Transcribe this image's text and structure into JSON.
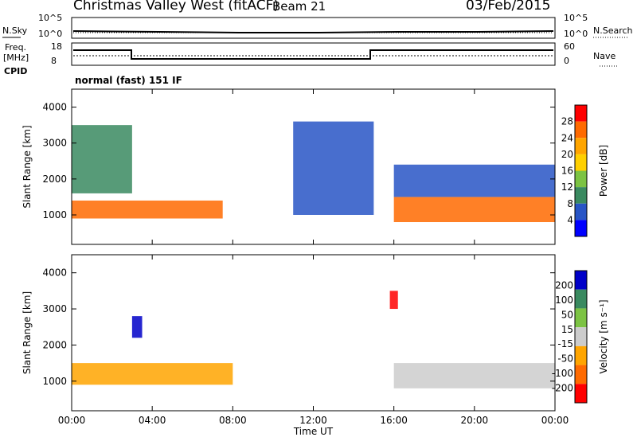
{
  "header": {
    "title": "Christmas Valley West (fitACF)",
    "beam": "Beam 21",
    "date": "03/Feb/2015"
  },
  "top_panels": {
    "nsky_label": "N.Sky",
    "nsearch_label": "N.Search",
    "nsky_ticks": [
      "10^5",
      "10^0"
    ],
    "freq_label_1": "Freq.",
    "freq_label_2": "[MHz]",
    "freq_ticks": [
      "18",
      "8"
    ],
    "nave_label": "Nave",
    "nave_ticks": [
      "60",
      "0"
    ],
    "cpid_label": "CPID",
    "mode_text": "normal (fast) 151 IF"
  },
  "chart_data": [
    {
      "type": "heatmap",
      "title": "",
      "xlabel": "",
      "ylabel": "Slant Range [km]",
      "x_ticks": [
        "00:00",
        "04:00",
        "08:00",
        "12:00",
        "16:00",
        "20:00",
        "00:00"
      ],
      "y_ticks": [
        "1000",
        "2000",
        "3000",
        "4000"
      ],
      "xlim": [
        0,
        24
      ],
      "ylim": [
        180,
        4500
      ],
      "colorbar": {
        "label": "Power [dB]",
        "ticks": [
          "28",
          "24",
          "20",
          "16",
          "12",
          "8",
          "4"
        ],
        "colors": [
          "#ff0000",
          "#ff6a00",
          "#ffa500",
          "#ffd000",
          "#7cc343",
          "#3a8a60",
          "#2855c6",
          "#0000ff"
        ]
      },
      "features": [
        {
          "t_start": 0,
          "t_end": 7.5,
          "range_start": 900,
          "range_end": 1400,
          "value": 26
        },
        {
          "t_start": 0,
          "t_end": 3,
          "range_start": 1600,
          "range_end": 3500,
          "value": 12
        },
        {
          "t_start": 16,
          "t_end": 24,
          "range_start": 800,
          "range_end": 1500,
          "value": 28
        },
        {
          "t_start": 16,
          "t_end": 24,
          "range_start": 1500,
          "range_end": 2400,
          "value": 8
        },
        {
          "t_start": 11,
          "t_end": 15,
          "range_start": 1000,
          "range_end": 3600,
          "value": 6
        }
      ]
    },
    {
      "type": "heatmap",
      "title": "",
      "xlabel": "Time UT",
      "ylabel": "Slant Range [km]",
      "x_ticks": [
        "00:00",
        "04:00",
        "08:00",
        "12:00",
        "16:00",
        "20:00",
        "00:00"
      ],
      "y_ticks": [
        "1000",
        "2000",
        "3000",
        "4000"
      ],
      "xlim": [
        0,
        24
      ],
      "ylim": [
        180,
        4500
      ],
      "colorbar": {
        "label": "Velocity [m s⁻¹]",
        "ticks": [
          "200",
          "100",
          "50",
          "15",
          "-15",
          "-50",
          "-100",
          "-200"
        ],
        "colors": [
          "#0000c8",
          "#3a8a60",
          "#7cc343",
          "#cccccc",
          "#ffa500",
          "#ff6a00",
          "#ff0000"
        ]
      },
      "features": [
        {
          "t_start": 0,
          "t_end": 8,
          "range_start": 900,
          "range_end": 1500,
          "value": -40
        },
        {
          "t_start": 3,
          "t_end": 3.5,
          "range_start": 2200,
          "range_end": 2800,
          "value": 200
        },
        {
          "t_start": 16,
          "t_end": 24,
          "range_start": 800,
          "range_end": 1500,
          "value": 0
        },
        {
          "t_start": 15.8,
          "t_end": 16.2,
          "range_start": 3000,
          "range_end": 3500,
          "value": -200
        }
      ]
    }
  ]
}
